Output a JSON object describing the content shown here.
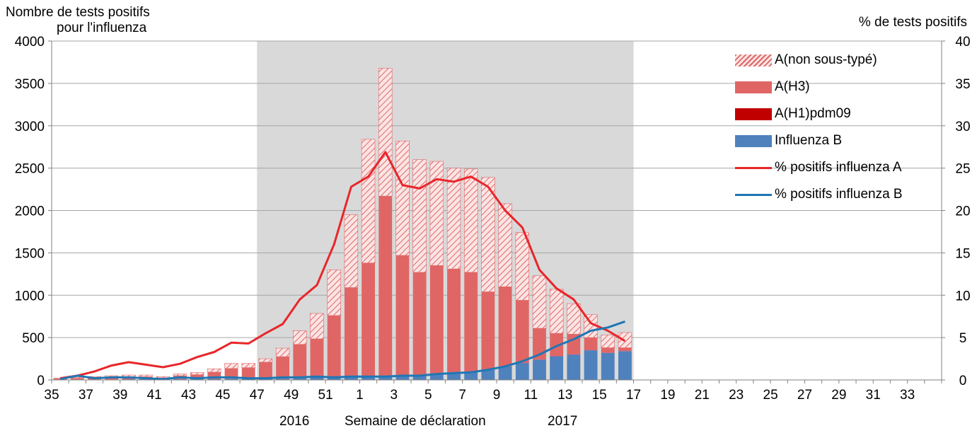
{
  "chart_data": {
    "type": "bar",
    "stacked": true,
    "title": "",
    "ylabel_left": [
      "Nombre de tests positifs",
      "pour l'influenza"
    ],
    "ylabel_right": "% de tests positifs",
    "xlabel": "Semaine de déclaration",
    "year_labels": [
      "2016",
      "2017"
    ],
    "ylim_left": [
      0,
      4000
    ],
    "yticks_left": [
      "0",
      "500",
      "1000",
      "1500",
      "2000",
      "2500",
      "3000",
      "3500",
      "4000"
    ],
    "ylim_right": [
      0,
      40
    ],
    "yticks_right": [
      "0",
      "5",
      "10",
      "15",
      "20",
      "25",
      "30",
      "35",
      "40"
    ],
    "weeks": [
      35,
      36,
      37,
      38,
      39,
      40,
      41,
      42,
      43,
      44,
      45,
      46,
      47,
      48,
      49,
      50,
      51,
      52,
      1,
      2,
      3,
      4,
      5,
      6,
      7,
      8,
      9,
      10,
      11,
      12,
      13,
      14,
      15,
      16,
      17,
      18,
      19,
      20,
      21,
      22,
      23,
      24,
      25,
      26,
      27,
      28,
      29,
      30,
      31,
      32,
      33,
      34
    ],
    "x_tick_labels": [
      "35",
      "37",
      "39",
      "41",
      "43",
      "45",
      "47",
      "49",
      "51",
      "1",
      "3",
      "5",
      "7",
      "9",
      "11",
      "13",
      "15",
      "17",
      "19",
      "21",
      "23",
      "25",
      "27",
      "29",
      "31",
      "33"
    ],
    "shaded_period": {
      "from_week": 47,
      "to_week": 17,
      "color": "#d9d9d9"
    },
    "grid": "horizontal",
    "legend_position": "top-right",
    "series": [
      {
        "name": "Influenza B",
        "kind": "bar",
        "color": "#4f81bd",
        "values": [
          5,
          5,
          5,
          5,
          8,
          8,
          5,
          10,
          12,
          12,
          15,
          15,
          10,
          15,
          20,
          25,
          30,
          30,
          30,
          40,
          50,
          60,
          70,
          80,
          100,
          120,
          160,
          200,
          240,
          280,
          300,
          350,
          320,
          340,
          0,
          0,
          0,
          0,
          0,
          0,
          0,
          0,
          0,
          0,
          0,
          0,
          0,
          0,
          0,
          0,
          0,
          0
        ]
      },
      {
        "name": "A(H1)pdm09",
        "kind": "bar",
        "color": "#c00000",
        "values": [
          0,
          0,
          0,
          0,
          0,
          0,
          0,
          0,
          0,
          0,
          0,
          0,
          0,
          0,
          0,
          0,
          0,
          0,
          0,
          0,
          0,
          0,
          0,
          0,
          0,
          0,
          0,
          0,
          0,
          0,
          0,
          0,
          0,
          0,
          0,
          0,
          0,
          0,
          0,
          0,
          0,
          0,
          0,
          0,
          0,
          0,
          0,
          0,
          0,
          0,
          0,
          0
        ]
      },
      {
        "name": "A(H3)",
        "kind": "bar",
        "color": "#e06666",
        "values": [
          10,
          15,
          20,
          25,
          30,
          30,
          20,
          40,
          50,
          80,
          120,
          130,
          200,
          260,
          400,
          460,
          730,
          1060,
          1350,
          2130,
          1420,
          1210,
          1280,
          1230,
          1170,
          920,
          940,
          740,
          370,
          270,
          240,
          150,
          60,
          40,
          0,
          0,
          0,
          0,
          0,
          0,
          0,
          0,
          0,
          0,
          0,
          0,
          0,
          0,
          0,
          0,
          0,
          0
        ]
      },
      {
        "name": "A(non sous-typé)",
        "kind": "bar",
        "color": "#e06666",
        "pattern": "hatched",
        "values": [
          5,
          10,
          15,
          20,
          20,
          20,
          15,
          20,
          25,
          40,
          60,
          50,
          40,
          100,
          160,
          300,
          540,
          860,
          1460,
          1510,
          1350,
          1330,
          1230,
          1190,
          1220,
          1350,
          980,
          800,
          620,
          520,
          360,
          270,
          150,
          180,
          0,
          0,
          0,
          0,
          0,
          0,
          0,
          0,
          0,
          0,
          0,
          0,
          0,
          0,
          0,
          0,
          0,
          0
        ]
      },
      {
        "name": "% positifs influenza A",
        "kind": "line",
        "axis": "right",
        "color": "#e8262a",
        "values": [
          0.2,
          0.5,
          1.0,
          1.7,
          2.1,
          1.8,
          1.5,
          1.9,
          2.7,
          3.3,
          4.4,
          4.3,
          5.5,
          6.6,
          9.5,
          11.2,
          16.0,
          22.8,
          24.0,
          26.9,
          23.0,
          22.6,
          23.7,
          23.4,
          24.0,
          22.8,
          20.0,
          18.0,
          13.0,
          10.8,
          9.5,
          6.7,
          5.8,
          4.6,
          null,
          null,
          null,
          null,
          null,
          null,
          null,
          null,
          null,
          null,
          null,
          null,
          null,
          null,
          null,
          null,
          null,
          null
        ]
      },
      {
        "name": "% positifs influenza B",
        "kind": "line",
        "axis": "right",
        "color": "#1f77b4",
        "values": [
          0.1,
          0.5,
          0.2,
          0.3,
          0.3,
          0.2,
          0.1,
          0.3,
          0.2,
          0.3,
          0.3,
          0.2,
          0.2,
          0.3,
          0.3,
          0.4,
          0.3,
          0.4,
          0.4,
          0.4,
          0.5,
          0.5,
          0.7,
          0.8,
          0.9,
          1.2,
          1.6,
          2.2,
          3.0,
          4.0,
          4.8,
          5.8,
          6.2,
          6.9,
          null,
          null,
          null,
          null,
          null,
          null,
          null,
          null,
          null,
          null,
          null,
          null,
          null,
          null,
          null,
          null,
          null,
          null
        ]
      }
    ]
  },
  "legend": [
    {
      "label": "A(non sous-typé)",
      "kind": "hatch",
      "color": "#e06666"
    },
    {
      "label": "A(H3)",
      "kind": "bar",
      "color": "#e06666"
    },
    {
      "label": "A(H1)pdm09",
      "kind": "bar",
      "color": "#c00000"
    },
    {
      "label": "Influenza B",
      "kind": "bar",
      "color": "#4f81bd"
    },
    {
      "label": "% positifs influenza A",
      "kind": "line",
      "color": "#e8262a"
    },
    {
      "label": "% positifs influenza B",
      "kind": "line",
      "color": "#1f77b4"
    }
  ]
}
